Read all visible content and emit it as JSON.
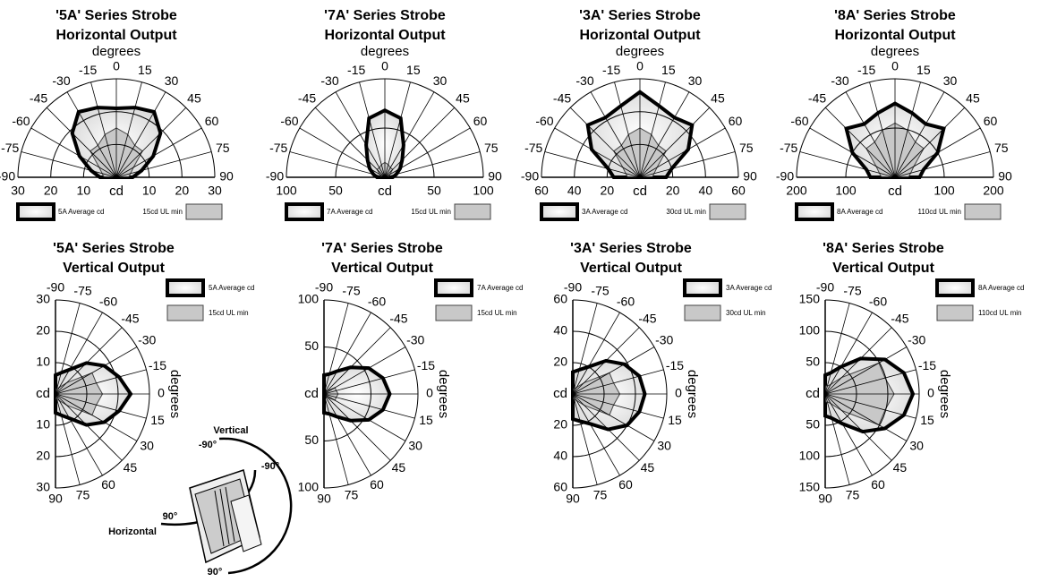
{
  "chart_data": [
    {
      "type": "polar",
      "orientation": "horizontal",
      "title": "'5A' Series Strobe",
      "subtitle": "Horizontal Output",
      "angle_label": "degrees",
      "radial_label": "cd",
      "angles": [
        -90,
        -75,
        -60,
        -45,
        -30,
        -15,
        0,
        15,
        30,
        45,
        60,
        75,
        90
      ],
      "angle_ticks": [
        -90,
        -75,
        -60,
        -45,
        -30,
        -15,
        0,
        15,
        30,
        45,
        60,
        75,
        90
      ],
      "rlim": [
        0,
        30
      ],
      "rticks": [
        10,
        20,
        30
      ],
      "series": [
        {
          "name": "5A Average cd",
          "color": "#000000",
          "values": [
            5,
            8,
            13,
            19,
            23,
            22,
            21,
            22,
            23,
            19,
            13,
            8,
            5
          ]
        },
        {
          "name": "15cd UL min",
          "color": "#c8c8c8",
          "values": [
            3.75,
            4.5,
            6,
            11.25,
            11.25,
            13.5,
            15,
            13.5,
            11.25,
            11.25,
            6,
            4.5,
            3.75
          ]
        }
      ]
    },
    {
      "type": "polar",
      "orientation": "horizontal",
      "title": "'7A' Series Strobe",
      "subtitle": "Horizontal Output",
      "angle_label": "degrees",
      "radial_label": "cd",
      "angles": [
        -90,
        -75,
        -60,
        -45,
        -30,
        -15,
        0,
        15,
        30,
        45,
        60,
        75,
        90
      ],
      "angle_ticks": [
        -90,
        -75,
        -60,
        -45,
        -30,
        -15,
        0,
        15,
        30,
        45,
        60,
        75,
        90
      ],
      "rlim": [
        0,
        100
      ],
      "rticks": [
        50,
        100
      ],
      "series": [
        {
          "name": "7A Average cd",
          "color": "#000000",
          "values": [
            8,
            12,
            18,
            25,
            38,
            62,
            68,
            62,
            38,
            25,
            18,
            12,
            8
          ]
        },
        {
          "name": "15cd UL min",
          "color": "#c8c8c8",
          "values": [
            3.75,
            4.5,
            6,
            11.25,
            11.25,
            13.5,
            15,
            13.5,
            11.25,
            11.25,
            6,
            4.5,
            3.75
          ]
        }
      ]
    },
    {
      "type": "polar",
      "orientation": "horizontal",
      "title": "'3A' Series Strobe",
      "subtitle": "Horizontal Output",
      "angle_label": "degrees",
      "radial_label": "cd",
      "angles": [
        -90,
        -75,
        -60,
        -45,
        -30,
        -15,
        0,
        15,
        30,
        45,
        60,
        75,
        90
      ],
      "angle_ticks": [
        -90,
        -75,
        -60,
        -45,
        -30,
        -15,
        0,
        15,
        30,
        45,
        60,
        75,
        90
      ],
      "rlim": [
        0,
        60
      ],
      "rticks": [
        20,
        40,
        60
      ],
      "series": [
        {
          "name": "3A Average cd",
          "color": "#000000",
          "values": [
            16,
            20,
            34,
            45,
            42,
            45,
            52,
            45,
            42,
            45,
            34,
            20,
            16
          ]
        },
        {
          "name": "30cd UL min",
          "color": "#c8c8c8",
          "values": [
            7.5,
            9,
            12,
            22.5,
            22.5,
            27,
            30,
            27,
            22.5,
            22.5,
            12,
            9,
            7.5
          ]
        }
      ]
    },
    {
      "type": "polar",
      "orientation": "horizontal",
      "title": "'8A' Series Strobe",
      "subtitle": "Horizontal Output",
      "angle_label": "degrees",
      "radial_label": "cd",
      "angles": [
        -90,
        -75,
        -60,
        -45,
        -30,
        -15,
        0,
        15,
        30,
        45,
        60,
        75,
        90
      ],
      "angle_ticks": [
        -90,
        -75,
        -60,
        -45,
        -30,
        -15,
        0,
        15,
        30,
        45,
        60,
        75,
        90
      ],
      "rlim": [
        0,
        200
      ],
      "rticks": [
        100,
        200
      ],
      "series": [
        {
          "name": "8A Average cd",
          "color": "#000000",
          "values": [
            50,
            60,
            100,
            140,
            125,
            135,
            150,
            135,
            125,
            140,
            100,
            60,
            50
          ]
        },
        {
          "name": "110cd UL min",
          "color": "#c8c8c8",
          "values": [
            27.5,
            33,
            44,
            82.5,
            82.5,
            99,
            110,
            99,
            82.5,
            82.5,
            44,
            33,
            27.5
          ]
        }
      ]
    },
    {
      "type": "polar",
      "orientation": "vertical",
      "title": "'5A' Series Strobe",
      "subtitle": "Vertical Output",
      "angle_label": "degrees",
      "radial_label": "cd",
      "angles": [
        -90,
        -75,
        -60,
        -45,
        -30,
        -15,
        0,
        15,
        30,
        45,
        60,
        75,
        90
      ],
      "angle_ticks": [
        -90,
        -75,
        -60,
        -45,
        -30,
        -15,
        0,
        15,
        30,
        45,
        60,
        75,
        90
      ],
      "rlim": [
        0,
        30
      ],
      "rticks": [
        10,
        20,
        30
      ],
      "series": [
        {
          "name": "5A Average cd",
          "color": "#000000",
          "values": [
            6,
            7,
            9,
            14,
            18,
            21,
            24,
            21,
            18,
            14,
            9,
            7,
            6
          ]
        },
        {
          "name": "15cd UL min",
          "color": "#c8c8c8",
          "values": [
            1.8,
            1.8,
            2.4,
            5.1,
            13.5,
            13.5,
            15,
            13.5,
            13.5,
            5.1,
            2.4,
            1.8,
            1.8
          ]
        }
      ]
    },
    {
      "type": "polar",
      "orientation": "vertical",
      "title": "'7A' Series Strobe",
      "subtitle": "Vertical Output",
      "angle_label": "degrees",
      "radial_label": "cd",
      "angles": [
        -90,
        -75,
        -60,
        -45,
        -30,
        -15,
        0,
        15,
        30,
        45,
        60,
        75,
        90
      ],
      "angle_ticks": [
        -90,
        -75,
        -60,
        -45,
        -30,
        -15,
        0,
        15,
        30,
        45,
        60,
        75,
        90
      ],
      "rlim": [
        0,
        100
      ],
      "rticks": [
        50,
        100
      ],
      "series": [
        {
          "name": "7A Average cd",
          "color": "#000000",
          "values": [
            20,
            22,
            28,
            40,
            55,
            65,
            70,
            65,
            55,
            40,
            28,
            22,
            20
          ]
        },
        {
          "name": "15cd UL min",
          "color": "#c8c8c8",
          "values": [
            1.8,
            1.8,
            2.4,
            5.1,
            13.5,
            13.5,
            15,
            13.5,
            13.5,
            5.1,
            2.4,
            1.8,
            1.8
          ]
        }
      ]
    },
    {
      "type": "polar",
      "orientation": "vertical",
      "title": "'3A' Series Strobe",
      "subtitle": "Vertical Output",
      "angle_label": "degrees",
      "radial_label": "cd",
      "angles": [
        -90,
        -75,
        -60,
        -45,
        -30,
        -15,
        0,
        15,
        30,
        45,
        60,
        75,
        90
      ],
      "angle_ticks": [
        -90,
        -75,
        -60,
        -45,
        -30,
        -15,
        0,
        15,
        30,
        45,
        60,
        75,
        90
      ],
      "rlim": [
        0,
        60
      ],
      "rticks": [
        20,
        40,
        60
      ],
      "series": [
        {
          "name": "3A Average cd",
          "color": "#000000",
          "values": [
            14,
            16,
            20,
            30,
            38,
            44,
            46,
            44,
            40,
            32,
            22,
            18,
            16
          ]
        },
        {
          "name": "30cd UL min",
          "color": "#c8c8c8",
          "values": [
            3.6,
            3.6,
            4.8,
            10.2,
            27,
            27,
            30,
            27,
            27,
            10.2,
            4.8,
            3.6,
            3.6
          ]
        }
      ]
    },
    {
      "type": "polar",
      "orientation": "vertical",
      "title": "'8A' Series Strobe",
      "subtitle": "Vertical Output",
      "angle_label": "degrees",
      "radial_label": "cd",
      "angles": [
        -90,
        -75,
        -60,
        -45,
        -30,
        -15,
        0,
        15,
        30,
        45,
        60,
        75,
        90
      ],
      "angle_ticks": [
        -90,
        -75,
        -60,
        -45,
        -30,
        -15,
        0,
        15,
        30,
        45,
        60,
        75,
        90
      ],
      "rlim": [
        0,
        150
      ],
      "rticks": [
        50,
        100,
        150
      ],
      "series": [
        {
          "name": "8A Average cd",
          "color": "#000000",
          "values": [
            30,
            35,
            50,
            80,
            110,
            130,
            140,
            130,
            110,
            85,
            55,
            40,
            35
          ]
        },
        {
          "name": "110cd UL min",
          "color": "#c8c8c8",
          "values": [
            13.2,
            13.2,
            17.6,
            37.4,
            99,
            99,
            110,
            99,
            99,
            37.4,
            17.6,
            13.2,
            13.2
          ]
        }
      ]
    }
  ],
  "diagram": {
    "vertical": "Vertical",
    "vertical_top": "-90°",
    "vertical_side": "-90°",
    "horizontal_left": "90°",
    "horizontal": "Horizontal",
    "vertical_bottom": "90°"
  }
}
